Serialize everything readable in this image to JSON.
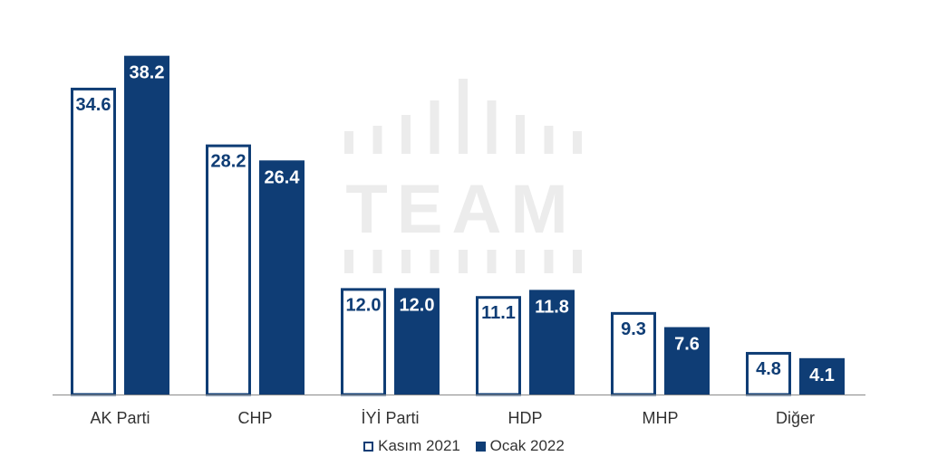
{
  "chart_data": {
    "type": "bar",
    "categories": [
      "AK Parti",
      "CHP",
      "İYİ Parti",
      "HDP",
      "MHP",
      "Diğer"
    ],
    "series": [
      {
        "name": "Kasım 2021",
        "values": [
          34.6,
          28.2,
          12.0,
          11.1,
          9.3,
          4.8
        ]
      },
      {
        "name": "Ocak 2022",
        "values": [
          38.2,
          26.4,
          12.0,
          11.8,
          7.6,
          4.1
        ]
      }
    ],
    "value_labels": [
      [
        "34.6",
        "28.2",
        "12.0",
        "11.1",
        "9.3",
        "4.8"
      ],
      [
        "38.2",
        "26.4",
        "12.0",
        "11.8",
        "7.6",
        "4.1"
      ]
    ],
    "ylim": [
      0,
      40
    ],
    "grid": false,
    "legend_position": "bottom",
    "colors": {
      "dark": "#0f3d75",
      "outline": "#0f3d75",
      "baseline": "#8a8a8a",
      "watermark": "#ececec"
    }
  },
  "watermark": {
    "text": "TEAM"
  }
}
